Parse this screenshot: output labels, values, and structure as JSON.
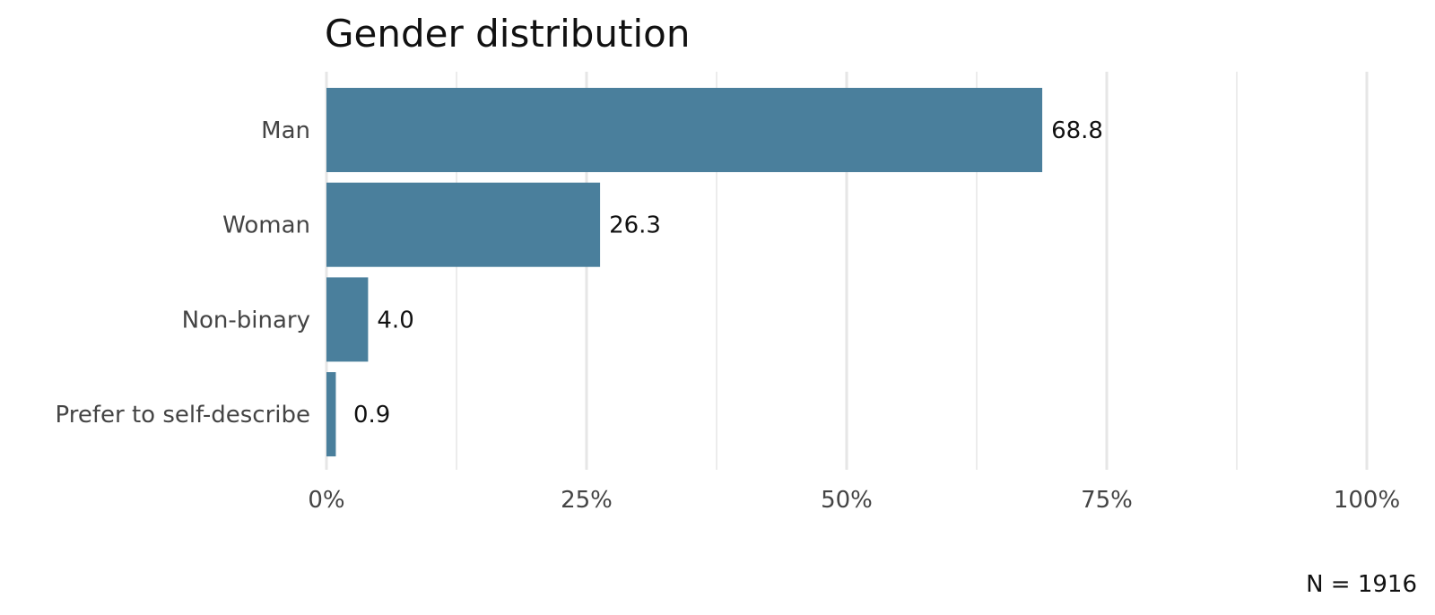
{
  "chart_data": {
    "type": "bar",
    "orientation": "horizontal",
    "title": "Gender distribution",
    "categories": [
      "Man",
      "Woman",
      "Non-binary",
      "Prefer to self-describe"
    ],
    "values": [
      68.8,
      26.3,
      4.0,
      0.9
    ],
    "value_labels": [
      "68.8",
      "26.3",
      "4.0",
      "0.9"
    ],
    "x_ticks": [
      0,
      25,
      50,
      75,
      100
    ],
    "x_tick_labels": [
      "0%",
      "25%",
      "50%",
      "75%",
      "100%"
    ],
    "xlim": [
      0,
      100
    ],
    "grid": true,
    "caption": "N = 1916",
    "bar_color": "#4a7f9c",
    "grid_color": "#e6e6e6"
  }
}
